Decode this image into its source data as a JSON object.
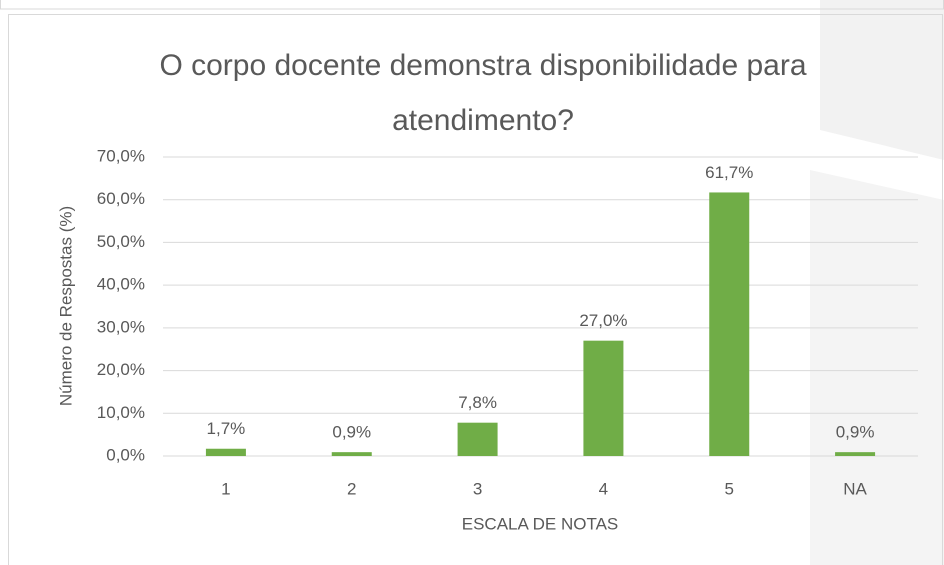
{
  "chart_data": {
    "type": "bar",
    "title": "O corpo docente demonstra disponibilidade para atendimento?",
    "x_label": "ESCALA DE NOTAS",
    "y_label": "Número de Respostas (%)",
    "categories": [
      "1",
      "2",
      "3",
      "4",
      "5",
      "NA"
    ],
    "values": [
      1.7,
      0.9,
      7.8,
      27.0,
      61.7,
      0.9
    ],
    "value_labels": [
      "1,7%",
      "0,9%",
      "7,8%",
      "27,0%",
      "61,7%",
      "0,9%"
    ],
    "color": "#70ad47",
    "ylim": [
      0,
      70
    ],
    "yticks": [
      {
        "value": 0,
        "label": "0,0%"
      },
      {
        "value": 10,
        "label": "10,0%"
      },
      {
        "value": 20,
        "label": "20,0%"
      },
      {
        "value": 30,
        "label": "30,0%"
      },
      {
        "value": 40,
        "label": "40,0%"
      },
      {
        "value": 50,
        "label": "50,0%"
      },
      {
        "value": 60,
        "label": "60,0%"
      },
      {
        "value": 70,
        "label": "70,0%"
      }
    ],
    "grid": true
  }
}
